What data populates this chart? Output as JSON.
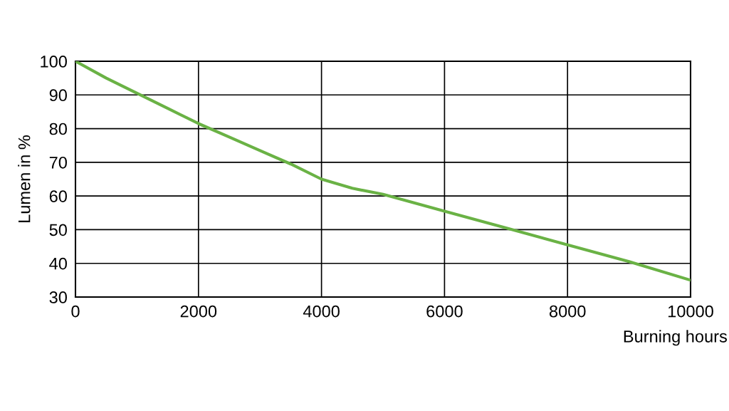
{
  "chart_data": {
    "type": "line",
    "xlabel": "Burning hours",
    "ylabel": "Lumen in %",
    "series": [
      {
        "color": "#6ab245",
        "x": [
          0,
          500,
          1000,
          1500,
          2000,
          2500,
          3000,
          3500,
          4000,
          4500,
          5000,
          6000,
          7000,
          8000,
          9000,
          10000
        ],
        "values": [
          100,
          95,
          90.5,
          86,
          81.5,
          77.5,
          73.5,
          69.5,
          65,
          62.3,
          60.5,
          55.5,
          50.5,
          45.5,
          40.5,
          35
        ]
      }
    ],
    "xlim": [
      0,
      10000
    ],
    "xticks": [
      0,
      2000,
      4000,
      6000,
      8000,
      10000
    ],
    "ylim": [
      30,
      100
    ],
    "yticks": [
      30,
      40,
      50,
      60,
      70,
      80,
      90,
      100
    ],
    "grid": true,
    "legend": false,
    "marker": "none",
    "line_style": "solid"
  }
}
